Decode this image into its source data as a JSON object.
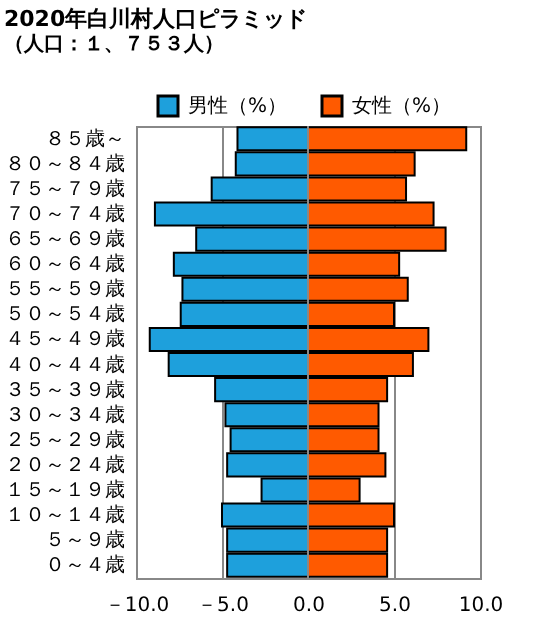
{
  "chart_data": {
    "type": "bar",
    "orientation": "horizontal",
    "title": "2020年白川村人口ピラミッド",
    "subtitle": "（人口：１、７５３人）",
    "categories": [
      "８５歳～",
      "８０～８４歳",
      "７５～７９歳",
      "７０～７４歳",
      "６５～６９歳",
      "６０～６４歳",
      "５５～５９歳",
      "５０～５４歳",
      "４５～４９歳",
      "４０～４４歳",
      "３５～３９歳",
      "３０～３４歳",
      "２５～２９歳",
      "２０～２４歳",
      "１５～１９歳",
      "１０～１４歳",
      "５～９歳",
      "０～４歳"
    ],
    "series": [
      {
        "name": "男性（%）",
        "color": "#1ea0dc",
        "values": [
          -4.1,
          -4.2,
          -5.6,
          -8.9,
          -6.5,
          -7.8,
          -7.3,
          -7.4,
          -9.2,
          -8.1,
          -5.4,
          -4.8,
          -4.5,
          -4.7,
          -2.7,
          -5.0,
          -4.7,
          -4.7
        ]
      },
      {
        "name": "女性（%）",
        "color": "#ff5a00",
        "values": [
          9.2,
          6.2,
          5.7,
          7.3,
          8.0,
          5.3,
          5.8,
          5.0,
          7.0,
          6.1,
          4.6,
          4.1,
          4.1,
          4.5,
          3.0,
          5.0,
          4.6,
          4.6
        ]
      }
    ],
    "xlim": [
      -10,
      10
    ],
    "xticks": [
      {
        "value": -10,
        "label": "－10.0"
      },
      {
        "value": -5,
        "label": "－5.0"
      },
      {
        "value": 0,
        "label": "0.0"
      },
      {
        "value": 5,
        "label": "5.0"
      },
      {
        "value": 10,
        "label": "10.0"
      }
    ],
    "grid": "x",
    "legend": "top right",
    "stacked": true
  }
}
